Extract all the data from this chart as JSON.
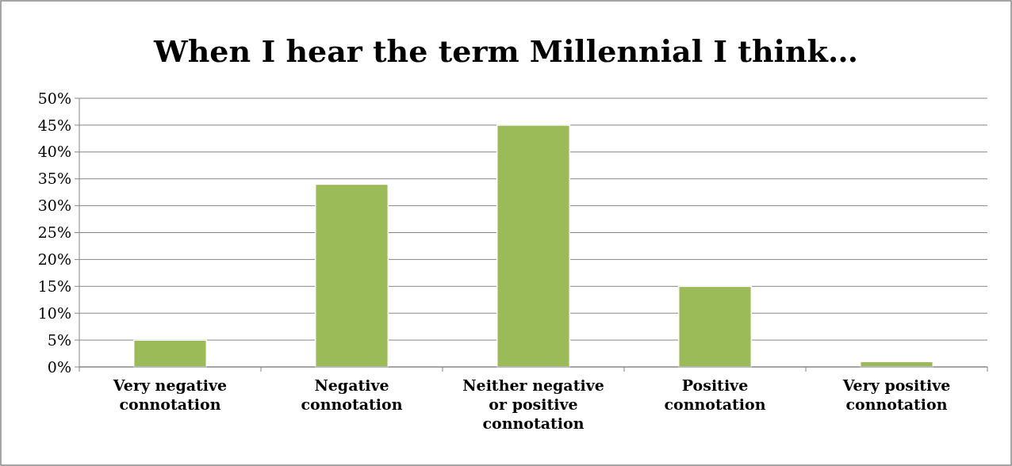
{
  "chart_data": {
    "type": "bar",
    "title": "When I hear the term Millennial I think…",
    "categories": [
      "Very negative connotation",
      "Negative connotation",
      "Neither negative or positive connotation",
      "Positive connotation",
      "Very positive connotation"
    ],
    "values": [
      5,
      34,
      45,
      15,
      1
    ],
    "color": "#9bbb59",
    "ylim": [
      0,
      50
    ],
    "yticks": [
      {
        "value": 0,
        "label": "0%"
      },
      {
        "value": 5,
        "label": "5%"
      },
      {
        "value": 10,
        "label": "10%"
      },
      {
        "value": 15,
        "label": "15%"
      },
      {
        "value": 20,
        "label": "20%"
      },
      {
        "value": 25,
        "label": "25%"
      },
      {
        "value": 30,
        "label": "30%"
      },
      {
        "value": 35,
        "label": "35%"
      },
      {
        "value": 40,
        "label": "40%"
      },
      {
        "value": 45,
        "label": "45%"
      },
      {
        "value": 50,
        "label": "50%"
      }
    ],
    "grid": true
  }
}
